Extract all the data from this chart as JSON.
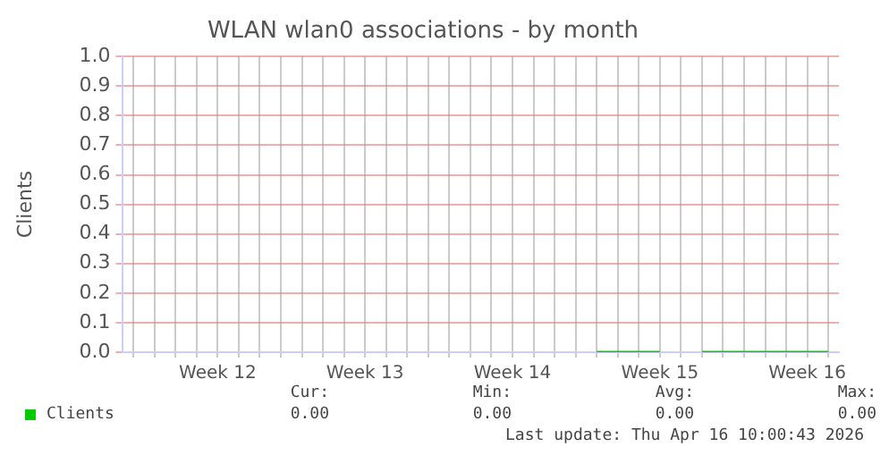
{
  "chart_data": {
    "type": "line",
    "title": "WLAN wlan0 associations - by month",
    "ylabel": "Clients",
    "categories": [
      null,
      null,
      null,
      null,
      "Week 12",
      null,
      null,
      null,
      null,
      null,
      null,
      "Week 13",
      null,
      null,
      null,
      null,
      null,
      null,
      "Week 14",
      null,
      null,
      null,
      null,
      null,
      null,
      "Week 15",
      null,
      null,
      null,
      null,
      null,
      null,
      "Week 16",
      null
    ],
    "ylim": [
      0,
      1
    ],
    "yticks": [
      {
        "value": 0,
        "label": "0.0"
      },
      0.1,
      0.2,
      0.3,
      0.4,
      0.5,
      0.6,
      0.7,
      0.8,
      0.9,
      {
        "value": 1,
        "label": "1.0"
      }
    ],
    "series": [
      {
        "name": "Clients",
        "color": "#00cc00",
        "values": [
          null,
          null,
          null,
          null,
          null,
          null,
          null,
          null,
          null,
          null,
          null,
          null,
          null,
          null,
          null,
          null,
          null,
          null,
          null,
          null,
          null,
          null,
          0,
          0,
          0,
          0,
          null,
          0,
          0,
          0,
          0,
          0,
          0,
          0
        ]
      }
    ],
    "grid": true,
    "legend": "bottom",
    "marker": "none",
    "annotations": [
      "Cur:",
      "Min:",
      "Avg:",
      "Max:",
      "0.00",
      "0.00",
      "0.00",
      "0.00",
      "Last update: Thu Apr 16 10:00:43 2026"
    ]
  }
}
